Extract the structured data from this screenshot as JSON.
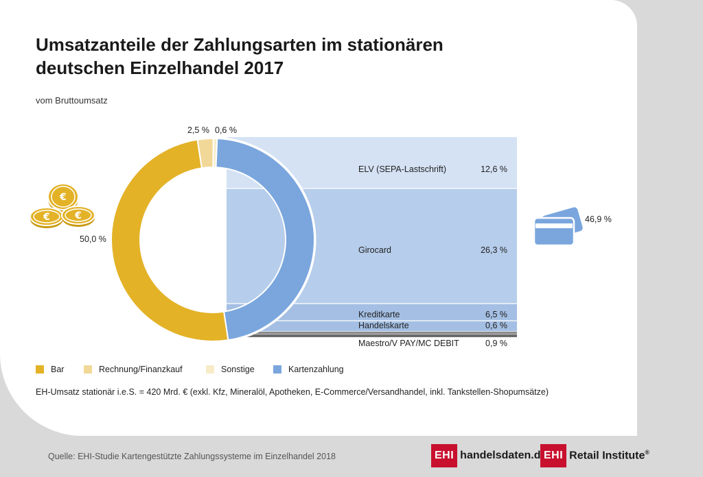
{
  "header": {
    "title_line1": "Umsatzanteile der Zahlungsarten im stationären",
    "title_line2": "deutschen Einzelhandel 2017",
    "subtitle": "vom Bruttoumsatz"
  },
  "colors": {
    "bar": "#e3b227",
    "rechnung": "#f2d898",
    "sonstige": "#f7ebc8",
    "karte": "#7aa6dd",
    "band_light": "#d4e2f4",
    "band_mid": "#b6cdeb",
    "band_dark": "#a4bfe3",
    "band_thin": "#8aa0b8",
    "band_grey": "#6e6e6e",
    "brand_red": "#c8102e"
  },
  "chart_data": {
    "type": "pie",
    "subtype": "donut",
    "unit": "%",
    "slices": [
      {
        "name": "Bar",
        "value": 50.0,
        "label": "50,0 %"
      },
      {
        "name": "Kartenzahlung",
        "value": 46.9,
        "label": "46,9 %"
      },
      {
        "name": "Sonstige",
        "value": 0.6,
        "label": "0,6 %"
      },
      {
        "name": "Rechnung/Finanzkauf",
        "value": 2.5,
        "label": "2,5 %"
      }
    ],
    "breakdown": {
      "of": "Kartenzahlung",
      "items": [
        {
          "name": "ELV (SEPA-Lastschrift)",
          "value": 12.6,
          "label": "12,6 %"
        },
        {
          "name": "Girocard",
          "value": 26.3,
          "label": "26,3 %"
        },
        {
          "name": "Kreditkarte",
          "value": 6.5,
          "label": "6,5 %"
        },
        {
          "name": "Handelskarte",
          "value": 0.6,
          "label": "0,6 %"
        },
        {
          "name": "Maestro/V PAY/MC DEBIT",
          "value": 0.9,
          "label": "0,9 %"
        }
      ]
    },
    "legend": [
      {
        "name": "Bar",
        "color_key": "bar"
      },
      {
        "name": "Rechnung/Finanzkauf",
        "color_key": "rechnung"
      },
      {
        "name": "Sonstige",
        "color_key": "sonstige"
      },
      {
        "name": "Kartenzahlung",
        "color_key": "karte"
      }
    ],
    "legend_position": "bottom-left"
  },
  "icons": {
    "coins": "euro-coins-icon",
    "card": "credit-card-icon"
  },
  "footer": {
    "note": "EH-Umsatz stationär i.e.S. = 420 Mrd. €  (exkl. Kfz, Mineralöl, Apotheken, E-Commerce/Versandhandel, inkl. Tankstellen-Shopumsätze)",
    "source": "Quelle: EHI-Studie Kartengestützte Zahlungssysteme im Einzelhandel 2018",
    "logo1_box": "EHI",
    "logo1_text": "handelsdaten.de",
    "logo2_box": "EHI",
    "logo2_text": "Retail Institute",
    "logo2_reg": "®"
  }
}
